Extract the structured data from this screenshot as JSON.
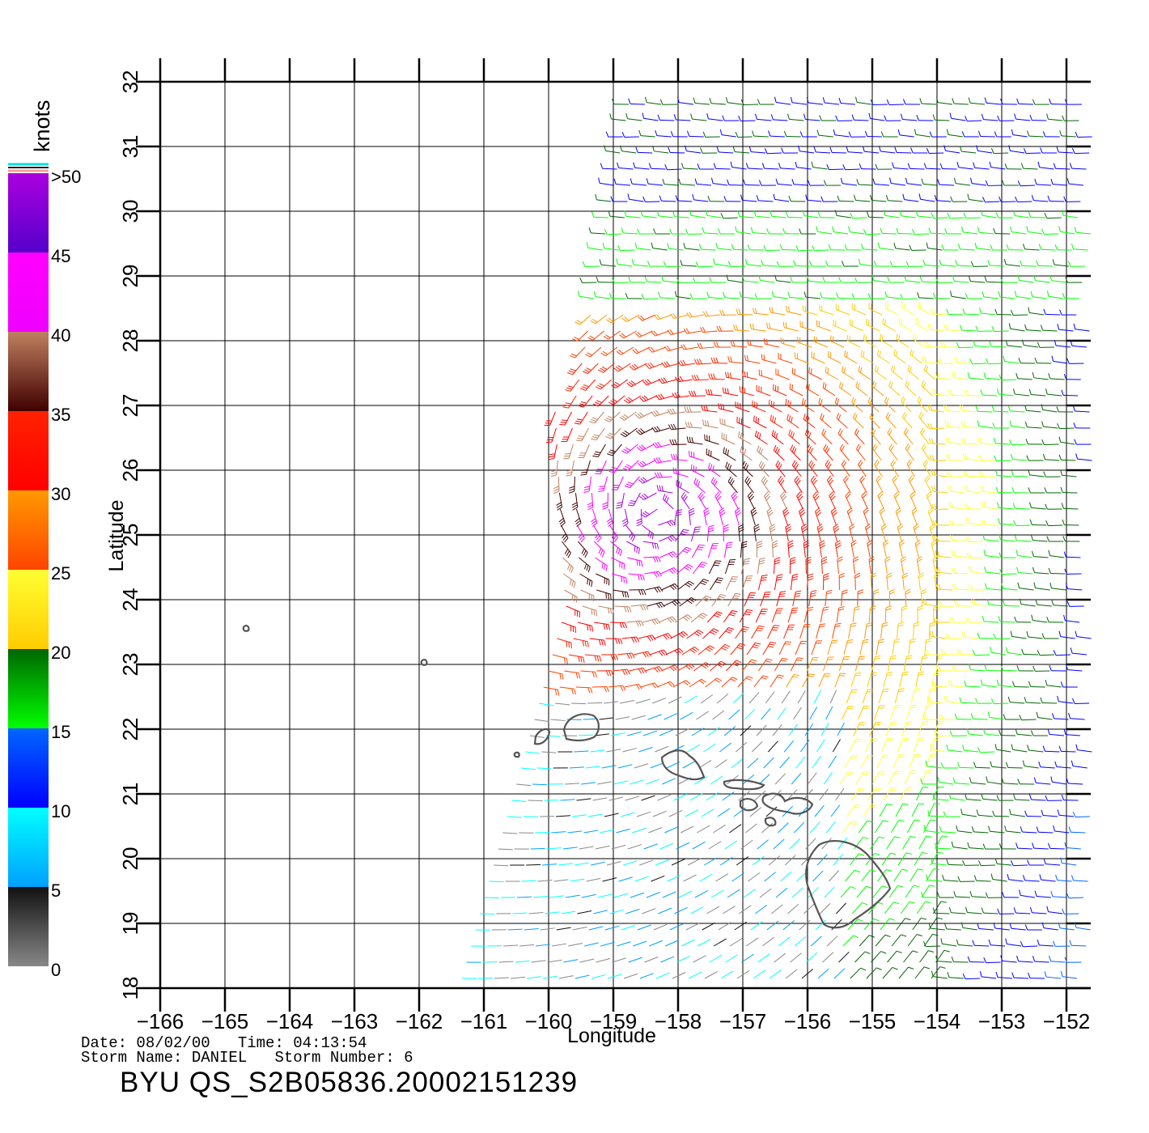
{
  "map": {
    "lon_range": [
      -166,
      -152
    ],
    "lat_range": [
      18,
      32
    ],
    "lon_ticks": [
      "-166",
      "-165",
      "-164",
      "-163",
      "-162",
      "-161",
      "-160",
      "-159",
      "-158",
      "-157",
      "-156",
      "-155",
      "-154",
      "-153",
      "-152"
    ],
    "lat_ticks": [
      "18",
      "19",
      "20",
      "21",
      "22",
      "23",
      "24",
      "25",
      "26",
      "27",
      "28",
      "29",
      "30",
      "31",
      "32"
    ],
    "xlabel": "Longitude",
    "ylabel": "Latitude",
    "grid": true,
    "wind_field_note": "speed shown by color",
    "storm_center_lonlat": [
      -158.3,
      25.3
    ]
  },
  "legend": {
    "unit": "knots",
    "labels": [
      {
        "text": "0",
        "value": 0
      },
      {
        "text": "5",
        "value": 5
      },
      {
        "text": "10",
        "value": 10
      },
      {
        "text": "15",
        "value": 15
      },
      {
        "text": "20",
        "value": 20
      },
      {
        "text": "25",
        "value": 25
      },
      {
        "text": "30",
        "value": 30
      },
      {
        "text": "35",
        "value": 35
      },
      {
        "text": "40",
        "value": 40
      },
      {
        "text": "45",
        "value": 45
      },
      {
        "text": ">50",
        "value": 50
      }
    ],
    "bands": [
      {
        "from": 0,
        "to": 5,
        "top": "#111111",
        "bottom": "#888888"
      },
      {
        "from": 5,
        "to": 10,
        "top": "#00ffff",
        "bottom": "#00a0ff"
      },
      {
        "from": 10,
        "to": 15,
        "top": "#0066ff",
        "bottom": "#0000ff"
      },
      {
        "from": 15,
        "to": 20,
        "top": "#006600",
        "bottom": "#00ff00"
      },
      {
        "from": 20,
        "to": 25,
        "top": "#ffff33",
        "bottom": "#ffcc00"
      },
      {
        "from": 25,
        "to": 30,
        "top": "#ff9900",
        "bottom": "#ff4400"
      },
      {
        "from": 30,
        "to": 35,
        "top": "#ff2200",
        "bottom": "#ff0000"
      },
      {
        "from": 35,
        "to": 40,
        "top": "#c08060",
        "bottom": "#400000"
      },
      {
        "from": 40,
        "to": 45,
        "top": "#ff00ff",
        "bottom": "#ee00ff"
      },
      {
        "from": 45,
        "to": 50,
        "top": "#aa00dd",
        "bottom": "#5500cc"
      }
    ]
  },
  "footer": {
    "date_line": "Date: 08/02/00   Time: 04:13:54",
    "storm_line": "Storm Name: DANIEL   Storm Number: 6",
    "title": "BYU QS_S2B05836.20002151239"
  }
}
